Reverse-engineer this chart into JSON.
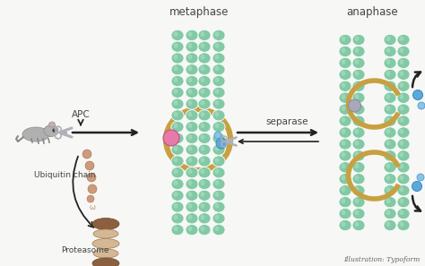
{
  "bg_color": "#f7f7f5",
  "title_metaphase": "metaphase",
  "title_anaphase": "anaphase",
  "label_apc": "APC",
  "label_ubiquitin": "Ubiquitin chain",
  "label_proteasome": "Proteasome",
  "label_separase": "separase",
  "label_illustration": "Illustration: Typoform",
  "color_chromosome": "#82c9a5",
  "color_chromo_light": "#a8dcc0",
  "color_chromo_stripe": "#ffffff",
  "color_cohesin": "#c8a040",
  "color_pink_ball": "#e87aaa",
  "color_blue_ball": "#5aaad8",
  "color_blue_ball2": "#88c4e8",
  "color_gray_ball": "#a8a8b8",
  "color_ubiquitin_chain": "#c89070",
  "color_scissors_body": "#b0b0b8",
  "color_scissors_handle": "#c8c8d0",
  "color_proteasome_light": "#d4b896",
  "color_proteasome_dark": "#8b6040",
  "color_proteasome_mid": "#c09868",
  "color_text": "#444444",
  "color_arrow": "#222222",
  "color_mouse": "#b0b0b0"
}
